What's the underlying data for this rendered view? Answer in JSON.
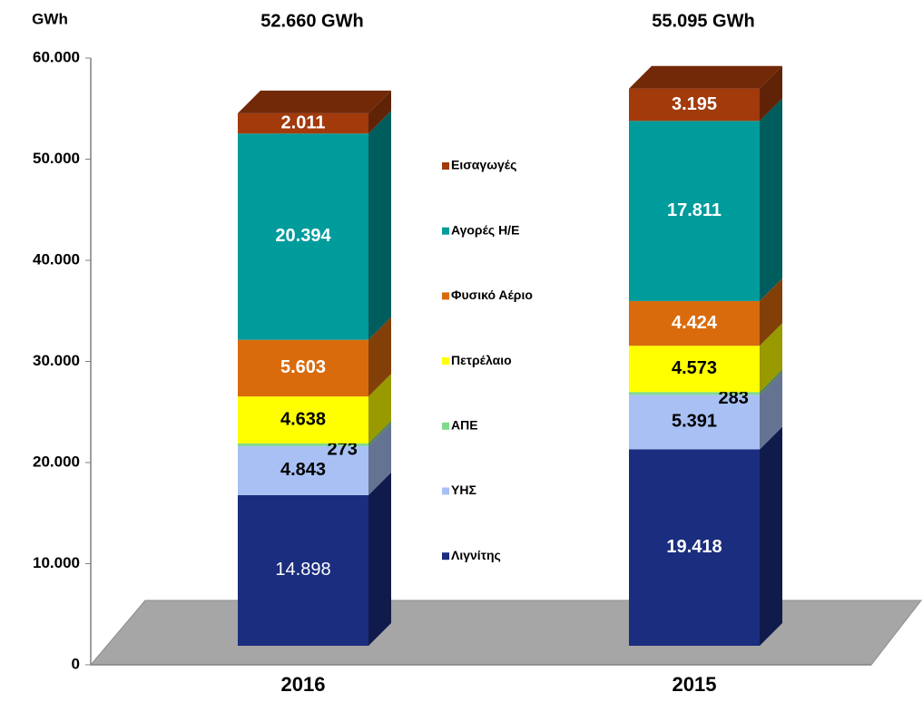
{
  "chart_data": {
    "type": "bar",
    "stacked": true,
    "y_label": "GWh",
    "totals": [
      "52.660 GWh",
      "55.095 GWh"
    ],
    "categories": [
      "2016",
      "2015"
    ],
    "series": [
      {
        "name": "Λιγνίτης",
        "color": "#1b2d7e",
        "values": [
          14898,
          19418
        ],
        "value_labels": [
          "14.898",
          "19.418"
        ]
      },
      {
        "name": "ΥΗΣ",
        "color": "#a8c0f4",
        "values": [
          4843,
          5391
        ],
        "value_labels": [
          "4.843",
          "5.391"
        ]
      },
      {
        "name": "ΑΠΕ",
        "color": "#80d98c",
        "values": [
          273,
          283
        ]
      },
      {
        "name": "Πετρέλαιο",
        "color": "#ffff00",
        "values": [
          4638,
          4573
        ],
        "value_labels": [
          "4.638",
          "4.573"
        ]
      },
      {
        "name": "Φυσικό Αέριο",
        "color": "#d96b0d",
        "values": [
          5603,
          4424
        ],
        "value_labels": [
          "5.603",
          "4.424"
        ]
      },
      {
        "name": "Αγορές Η/Ε",
        "color": "#009b9b",
        "values": [
          20394,
          17811
        ],
        "value_labels": [
          "20.394",
          "17.811"
        ]
      },
      {
        "name": "Εισαγωγές",
        "color": "#a23a0b",
        "values": [
          2011,
          3195
        ],
        "value_labels": [
          "2.011",
          "3.195"
        ]
      }
    ],
    "ylim": [
      0,
      60000
    ],
    "yticks": [
      {
        "value": 0,
        "label": "0"
      },
      {
        "value": 10000,
        "label": "10.000"
      },
      {
        "value": 20000,
        "label": "20.000"
      },
      {
        "value": 30000,
        "label": "30.000"
      },
      {
        "value": 40000,
        "label": "40.000"
      },
      {
        "value": 50000,
        "label": "50.000"
      },
      {
        "value": 60000,
        "label": "60.000"
      }
    ],
    "legend": "center"
  }
}
